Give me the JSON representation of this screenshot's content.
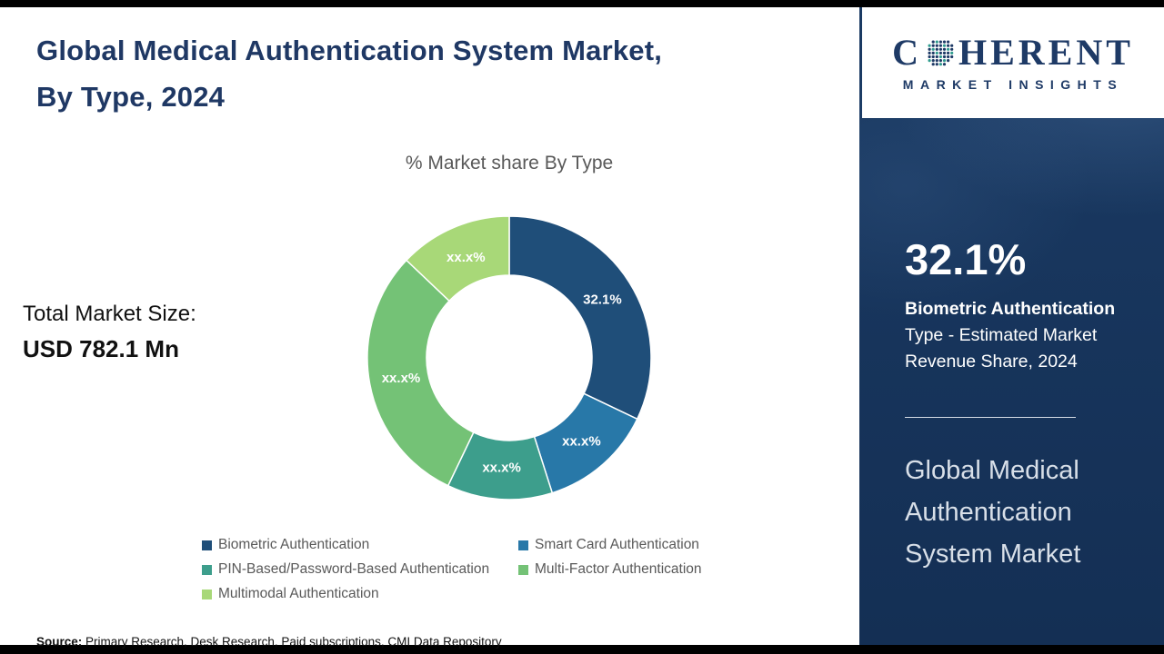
{
  "colors": {
    "brand_navy": "#1e3a66",
    "brand_teal": "#2f9c8e",
    "panel_navy": "#16355c"
  },
  "header": {
    "title_line1": "Global Medical Authentication System Market,",
    "title_line2": "By Type, 2024"
  },
  "chart_data": {
    "type": "pie",
    "donut": true,
    "title": "% Market share By Type",
    "note": "Only the Biometric Authentication share (32.1%) is disclosed; other slice values are masked as xx.x% (arc sizes estimated from the figure).",
    "segments": [
      {
        "name": "Biometric Authentication",
        "label": "32.1%",
        "value": 32.1,
        "color": "#1f4e79"
      },
      {
        "name": "Smart Card Authentication",
        "label": "xx.x%",
        "value": 13.0,
        "color": "#2878a8"
      },
      {
        "name": "PIN-Based/Password-Based Authentication",
        "label": "xx.x%",
        "value": 12.0,
        "color": "#3d9e8c"
      },
      {
        "name": "Multi-Factor Authentication",
        "label": "xx.x%",
        "value": 30.0,
        "color": "#74c276"
      },
      {
        "name": "Multimodal Authentication",
        "label": "xx.x%",
        "value": 12.9,
        "color": "#a8d878"
      }
    ],
    "legend_position": "bottom"
  },
  "total_market": {
    "label": "Total Market Size:",
    "value": "USD 782.1 Mn"
  },
  "source": {
    "prefix": "Source:",
    "text": " Primary Research, Desk Research, Paid subscriptions, CMI Data Repository"
  },
  "sidebar": {
    "logo": {
      "c": "C",
      "rest": "HERENT",
      "tagline": "MARKET INSIGHTS"
    },
    "stat_value": "32.1%",
    "stat_desc_bold": "Biometric Authentication",
    "stat_desc_rest": " Type - Estimated Market Revenue Share, 2024",
    "market_name": "Global Medical Authentication System Market"
  }
}
